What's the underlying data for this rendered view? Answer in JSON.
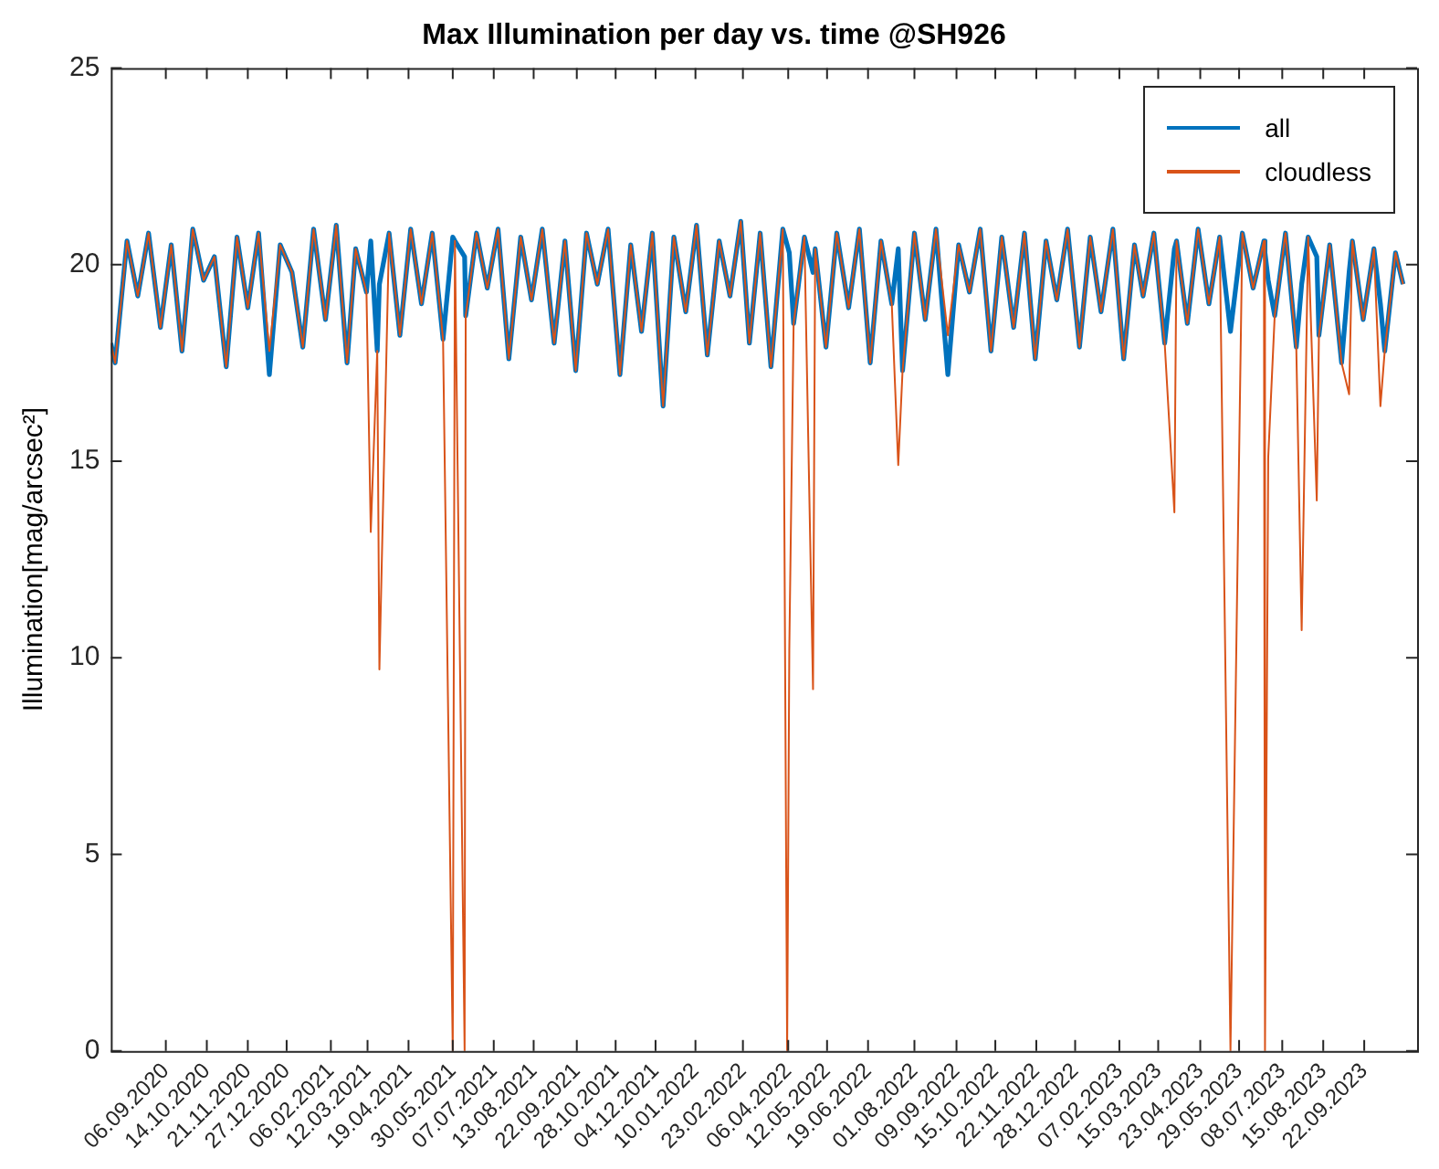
{
  "chart_data": {
    "type": "line",
    "title": "Max Illumination per day vs. time @SH926",
    "ylabel": "Illumination[mag/arcsec²]",
    "x": [
      "2020-07-17",
      "2020-07-21",
      "2020-08-01",
      "2020-08-11",
      "2020-08-21",
      "2020-09-01",
      "2020-09-11",
      "2020-09-21",
      "2020-10-01",
      "2020-10-11",
      "2020-10-21",
      "2020-11-01",
      "2020-11-11",
      "2020-11-21",
      "2020-12-01",
      "2020-12-11",
      "2020-12-21",
      "2021-01-01",
      "2021-01-11",
      "2021-01-21",
      "2021-02-01",
      "2021-02-11",
      "2021-02-21",
      "2021-03-01",
      "2021-03-11",
      "2021-03-15",
      "2021-03-21",
      "2021-03-23",
      "2021-04-01",
      "2021-04-11",
      "2021-04-21",
      "2021-05-01",
      "2021-05-11",
      "2021-05-21",
      "2021-05-30",
      "2021-06-01",
      "2021-06-10",
      "2021-06-11",
      "2021-06-21",
      "2021-07-01",
      "2021-07-11",
      "2021-07-21",
      "2021-08-01",
      "2021-08-11",
      "2021-08-21",
      "2021-09-01",
      "2021-09-11",
      "2021-09-21",
      "2021-10-01",
      "2021-10-11",
      "2021-10-21",
      "2021-11-01",
      "2021-11-11",
      "2021-11-21",
      "2021-12-01",
      "2021-12-11",
      "2021-12-21",
      "2022-01-01",
      "2022-01-11",
      "2022-01-21",
      "2022-02-01",
      "2022-02-11",
      "2022-02-21",
      "2022-03-01",
      "2022-03-11",
      "2022-03-21",
      "2022-04-01",
      "2022-04-05",
      "2022-04-07",
      "2022-04-11",
      "2022-04-21",
      "2022-04-29",
      "2022-05-01",
      "2022-05-11",
      "2022-05-21",
      "2022-06-01",
      "2022-06-11",
      "2022-06-21",
      "2022-07-01",
      "2022-07-11",
      "2022-07-17",
      "2022-07-21",
      "2022-08-01",
      "2022-08-11",
      "2022-08-21",
      "2022-09-01",
      "2022-09-11",
      "2022-09-21",
      "2022-10-01",
      "2022-10-11",
      "2022-10-21",
      "2022-11-01",
      "2022-11-11",
      "2022-11-21",
      "2022-12-01",
      "2022-12-11",
      "2022-12-21",
      "2023-01-01",
      "2023-01-11",
      "2023-01-21",
      "2023-02-01",
      "2023-02-11",
      "2023-02-21",
      "2023-03-01",
      "2023-03-11",
      "2023-03-21",
      "2023-03-30",
      "2023-04-01",
      "2023-04-11",
      "2023-04-21",
      "2023-05-01",
      "2023-05-11",
      "2023-05-21",
      "2023-06-01",
      "2023-06-11",
      "2023-06-21",
      "2023-06-22",
      "2023-06-25",
      "2023-07-01",
      "2023-07-11",
      "2023-07-21",
      "2023-07-26",
      "2023-08-01",
      "2023-08-09",
      "2023-08-11",
      "2023-08-21",
      "2023-09-01",
      "2023-09-08",
      "2023-09-11",
      "2023-09-21",
      "2023-10-01",
      "2023-10-07",
      "2023-10-11",
      "2023-10-21",
      "2023-10-28"
    ],
    "series": [
      {
        "name": "all",
        "color": "#0072bd",
        "values": [
          18.0,
          17.5,
          20.6,
          19.2,
          20.8,
          18.4,
          20.5,
          17.8,
          20.9,
          19.6,
          20.2,
          17.4,
          20.7,
          18.9,
          20.8,
          17.2,
          20.5,
          19.8,
          17.9,
          20.9,
          18.6,
          21.0,
          17.5,
          20.4,
          19.3,
          20.6,
          17.8,
          19.5,
          20.8,
          18.2,
          20.9,
          19.0,
          20.8,
          18.1,
          20.7,
          20.6,
          20.2,
          18.7,
          20.8,
          19.4,
          20.9,
          17.6,
          20.7,
          19.1,
          20.9,
          18.0,
          20.6,
          17.3,
          20.8,
          19.5,
          20.9,
          17.2,
          20.5,
          18.3,
          20.8,
          16.4,
          20.7,
          18.8,
          21.0,
          17.7,
          20.6,
          19.2,
          21.1,
          18.0,
          20.8,
          17.4,
          20.9,
          20.5,
          20.3,
          18.5,
          20.7,
          19.8,
          20.4,
          17.9,
          20.8,
          18.9,
          20.9,
          17.5,
          20.6,
          19.0,
          20.4,
          17.3,
          20.8,
          18.6,
          20.9,
          17.2,
          20.5,
          19.3,
          20.9,
          17.8,
          20.7,
          18.4,
          20.8,
          17.6,
          20.6,
          19.1,
          20.9,
          17.9,
          20.7,
          18.8,
          20.9,
          17.6,
          20.5,
          19.2,
          20.8,
          18.0,
          20.4,
          20.6,
          18.5,
          20.9,
          19.0,
          20.7,
          18.3,
          20.8,
          19.4,
          20.6,
          20.3,
          19.6,
          18.7,
          20.8,
          17.9,
          19.5,
          20.7,
          20.2,
          18.2,
          20.5,
          17.5,
          19.8,
          20.6,
          18.6,
          20.4,
          19.0,
          17.8,
          20.3,
          19.5
        ]
      },
      {
        "name": "cloudless",
        "color": "#d95319",
        "values": [
          18.0,
          17.5,
          20.6,
          19.2,
          20.8,
          18.4,
          20.5,
          17.8,
          20.9,
          19.6,
          20.2,
          17.4,
          20.7,
          18.9,
          20.8,
          17.8,
          20.5,
          19.8,
          17.9,
          20.9,
          18.6,
          21.0,
          17.5,
          20.4,
          19.3,
          13.2,
          17.8,
          9.7,
          20.8,
          18.2,
          20.9,
          19.0,
          20.8,
          18.1,
          0,
          20.6,
          0,
          18.7,
          20.8,
          19.4,
          20.9,
          17.6,
          20.7,
          19.1,
          20.9,
          18.0,
          20.6,
          17.3,
          20.8,
          19.5,
          20.9,
          17.2,
          20.5,
          18.3,
          20.8,
          16.4,
          20.7,
          18.8,
          21.0,
          17.7,
          20.6,
          19.2,
          21.1,
          18.0,
          20.8,
          17.4,
          20.9,
          0,
          10.2,
          18.5,
          20.7,
          9.2,
          20.4,
          17.9,
          20.8,
          18.9,
          20.9,
          17.5,
          20.6,
          19.0,
          14.9,
          17.3,
          20.8,
          18.6,
          20.9,
          18.2,
          20.5,
          19.3,
          20.9,
          17.8,
          20.7,
          18.4,
          20.8,
          17.6,
          20.6,
          19.1,
          20.9,
          17.9,
          20.7,
          18.8,
          20.9,
          17.6,
          20.5,
          19.2,
          20.8,
          18.0,
          13.7,
          20.6,
          18.5,
          20.9,
          19.0,
          20.7,
          0,
          20.8,
          19.4,
          20.6,
          0,
          15.1,
          18.7,
          20.8,
          17.9,
          10.7,
          20.7,
          14.0,
          18.2,
          20.5,
          17.5,
          16.7,
          20.6,
          18.6,
          20.4,
          16.4,
          17.8,
          20.3,
          19.5
        ]
      }
    ],
    "xlim": [
      "2020-07-17",
      "2023-11-10"
    ],
    "xticks": [
      {
        "value": "2020-09-06",
        "label": "06.09.2020"
      },
      {
        "value": "2020-10-14",
        "label": "14.10.2020"
      },
      {
        "value": "2020-11-21",
        "label": "21.11.2020"
      },
      {
        "value": "2020-12-27",
        "label": "27.12.2020"
      },
      {
        "value": "2021-02-06",
        "label": "06.02.2021"
      },
      {
        "value": "2021-03-12",
        "label": "12.03.2021"
      },
      {
        "value": "2021-04-19",
        "label": "19.04.2021"
      },
      {
        "value": "2021-05-30",
        "label": "30.05.2021"
      },
      {
        "value": "2021-07-07",
        "label": "07.07.2021"
      },
      {
        "value": "2021-08-13",
        "label": "13.08.2021"
      },
      {
        "value": "2021-09-22",
        "label": "22.09.2021"
      },
      {
        "value": "2021-10-28",
        "label": "28.10.2021"
      },
      {
        "value": "2021-12-04",
        "label": "04.12.2021"
      },
      {
        "value": "2022-01-10",
        "label": "10.01.2022"
      },
      {
        "value": "2022-02-23",
        "label": "23.02.2022"
      },
      {
        "value": "2022-04-06",
        "label": "06.04.2022"
      },
      {
        "value": "2022-05-12",
        "label": "12.05.2022"
      },
      {
        "value": "2022-06-19",
        "label": "19.06.2022"
      },
      {
        "value": "2022-08-01",
        "label": "01.08.2022"
      },
      {
        "value": "2022-09-09",
        "label": "09.09.2022"
      },
      {
        "value": "2022-10-15",
        "label": "15.10.2022"
      },
      {
        "value": "2022-11-22",
        "label": "22.11.2022"
      },
      {
        "value": "2022-12-28",
        "label": "28.12.2022"
      },
      {
        "value": "2023-02-07",
        "label": "07.02.2023"
      },
      {
        "value": "2023-03-15",
        "label": "15.03.2023"
      },
      {
        "value": "2023-04-23",
        "label": "23.04.2023"
      },
      {
        "value": "2023-05-29",
        "label": "29.05.2023"
      },
      {
        "value": "2023-07-08",
        "label": "08.07.2023"
      },
      {
        "value": "2023-08-15",
        "label": "15.08.2023"
      },
      {
        "value": "2023-09-22",
        "label": "22.09.2023"
      }
    ],
    "ylim": [
      0,
      25
    ],
    "yticks": [
      0,
      5,
      10,
      15,
      20,
      25
    ],
    "legend": "top right",
    "marker": "none",
    "line_style": "solid"
  }
}
